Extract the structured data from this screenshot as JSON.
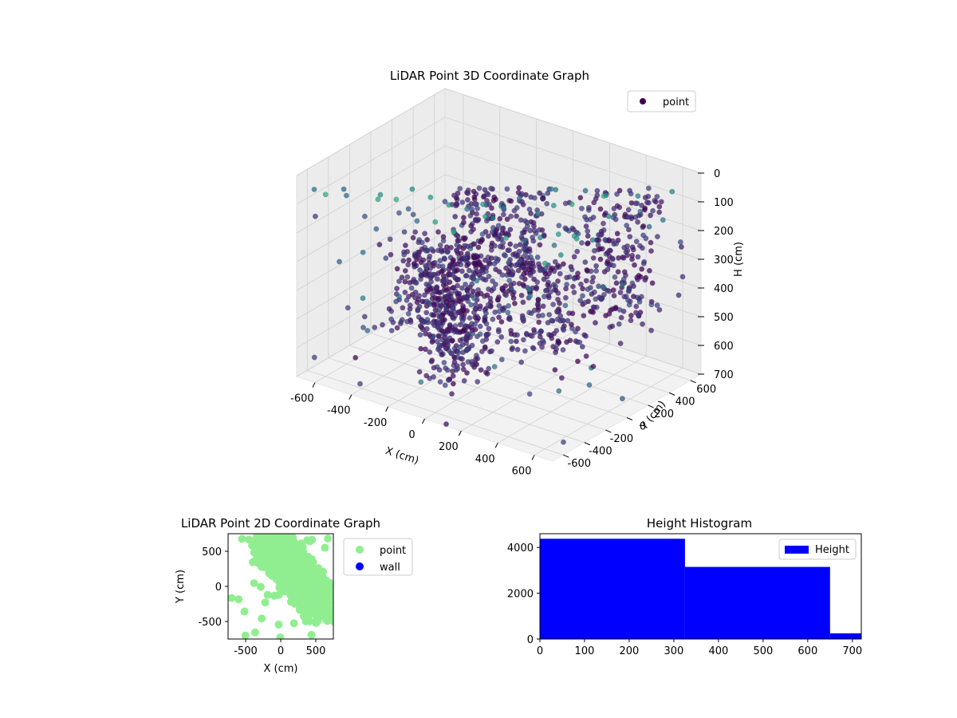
{
  "chart_data": [
    {
      "type": "scatter",
      "title": "LiDAR Point 3D Coordinate Graph",
      "xlabel": "X (cm)",
      "ylabel": "Y (cm)",
      "zlabel": "H (cm)",
      "xlim": [
        -700,
        700
      ],
      "ylim": [
        -700,
        700
      ],
      "zlim": [
        0,
        700
      ],
      "z_inverted": true,
      "x_ticks": [
        -600,
        -400,
        -200,
        0,
        200,
        400,
        600
      ],
      "y_ticks": [
        -600,
        -400,
        -200,
        0,
        200,
        400,
        600
      ],
      "z_ticks": [
        0,
        100,
        200,
        300,
        400,
        500,
        600,
        700
      ],
      "grid": true,
      "legend": "top-right",
      "colormap": "viridis",
      "series": [
        {
          "name": "point",
          "legend_color": "#440154",
          "clusters": [
            {
              "x": [
                -280,
                200
              ],
              "y": [
                -60,
                260
              ],
              "h": [
                0,
                360
              ]
            },
            {
              "x": [
                -40,
                480
              ],
              "y": [
                -260,
                60
              ],
              "h": [
                180,
                560
              ]
            },
            {
              "x": [
                180,
                560
              ],
              "y": [
                280,
                620
              ],
              "h": [
                0,
                520
              ]
            },
            {
              "x": [
                -560,
                -180
              ],
              "y": [
                -120,
                200
              ],
              "h": [
                320,
                640
              ]
            },
            {
              "x": [
                -220,
                40
              ],
              "y": [
                -420,
                -120
              ],
              "h": [
                260,
                680
              ]
            }
          ]
        }
      ],
      "ceiling_grid": {
        "x": [
          -600,
          600
        ],
        "y": [
          -600,
          600
        ],
        "step": 100,
        "h": [
          0,
          80
        ]
      }
    },
    {
      "type": "scatter",
      "title": "LiDAR Point 2D Coordinate Graph",
      "xlabel": "X (cm)",
      "ylabel": "Y (cm)",
      "xlim": [
        -750,
        750
      ],
      "ylim": [
        -750,
        750
      ],
      "x_ticks": [
        -500,
        0,
        500
      ],
      "y_ticks": [
        -500,
        0,
        500
      ],
      "legend": "outside-right",
      "series": [
        {
          "name": "point",
          "color": "#90ee90"
        },
        {
          "name": "wall",
          "color": "#0000ff"
        }
      ]
    },
    {
      "type": "bar",
      "title": "Height Histogram",
      "xlabel": "",
      "ylabel": "",
      "xlim": [
        0,
        720
      ],
      "ylim": [
        0,
        4600
      ],
      "x_ticks": [
        0,
        100,
        200,
        300,
        400,
        500,
        600,
        700
      ],
      "y_ticks": [
        0,
        2000,
        4000
      ],
      "legend": "top-right",
      "series": [
        {
          "name": "Height",
          "color": "#0000ff",
          "bins": [
            {
              "from": 0,
              "to": 325,
              "count": 4380
            },
            {
              "from": 325,
              "to": 650,
              "count": 3150
            },
            {
              "from": 650,
              "to": 720,
              "count": 250
            }
          ]
        }
      ]
    }
  ]
}
